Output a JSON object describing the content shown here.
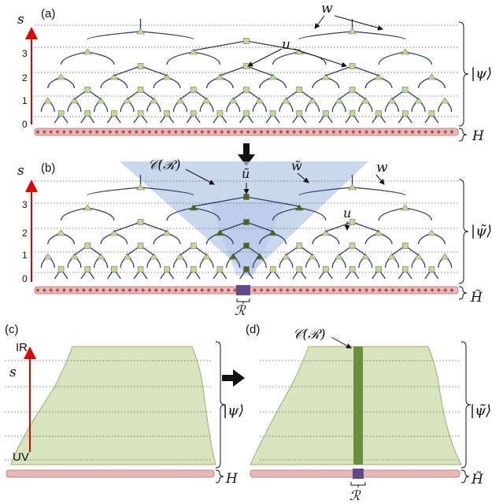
{
  "panels": {
    "a": {
      "label": "(a)",
      "axis": "s",
      "ticks": [
        "3",
        "2",
        "1",
        "0"
      ],
      "annotations": {
        "w": "w",
        "u": "u"
      },
      "state": "|ψ⟩",
      "hamiltonian": "H"
    },
    "b": {
      "label": "(b)",
      "axis": "s",
      "ticks": [
        "3",
        "2",
        "1",
        "0"
      ],
      "annotations": {
        "causal_cone": "𝒞(ℛ)",
        "u_tilde": "ũ",
        "w_tilde": "w̃",
        "w": "w",
        "u": "u"
      },
      "state": "|ψ̃⟩",
      "hamiltonian": "H̃",
      "region": "ℛ"
    },
    "c": {
      "label": "(c)",
      "axis": "s",
      "ir": "IR",
      "uv": "UV",
      "state": "|ψ⟩",
      "hamiltonian": "H"
    },
    "d": {
      "label": "(d)",
      "annotations": {
        "causal_cone": "𝒞(ℛ)"
      },
      "state": "|ψ̃⟩",
      "hamiltonian": "H̃",
      "region": "ℛ"
    }
  },
  "colors": {
    "tensor_light": "#c3d69b",
    "tensor_dark": "#4f6228",
    "wire": "#2b3f66",
    "hamiltonian": "#e6b9b8",
    "hamiltonian_dot": "#c0504d",
    "cone": "#b4c7e7",
    "region": "#5f4b8b",
    "axis": "#e00000",
    "bulk": "#d7e4bd",
    "cone_strip": "#6b8e3d"
  },
  "icons": [
    "down-arrow-icon",
    "right-arrow-icon"
  ]
}
